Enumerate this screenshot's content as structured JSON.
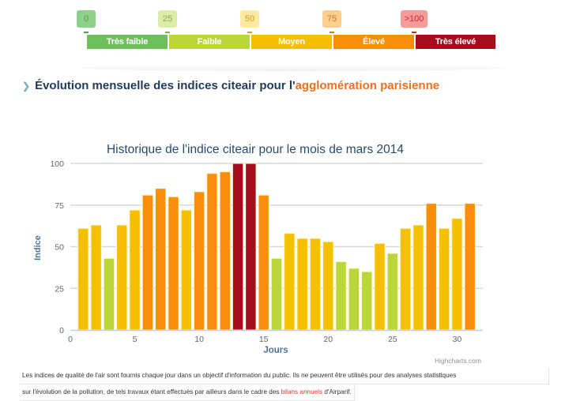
{
  "legend": {
    "thresholds": [
      {
        "label": "0",
        "bg": "#8fd18a",
        "fg": "#4f9a4a"
      },
      {
        "label": "25",
        "bg": "#dcecaa",
        "fg": "#8aab3a"
      },
      {
        "label": "50",
        "bg": "#fde9a0",
        "fg": "#d0a020"
      },
      {
        "label": "75",
        "bg": "#fccf90",
        "fg": "#c87820"
      },
      {
        "label": ">100",
        "bg": "#f99a9a",
        "fg": "#c03030"
      }
    ],
    "bands": [
      {
        "label": "Très faible",
        "color": "#6cbf5a"
      },
      {
        "label": "Faible",
        "color": "#bad63a"
      },
      {
        "label": "Moyen",
        "color": "#f5c000"
      },
      {
        "label": "Élevé",
        "color": "#f98e0a"
      },
      {
        "label": "Très élevé",
        "color": "#a50d1c"
      }
    ]
  },
  "section": {
    "title_prefix": "Évolution mensuelle des indices citeair pour l'",
    "title_highlight": "agglomération parisienne"
  },
  "chart_data": {
    "type": "bar",
    "title": "Historique de l'indice citeair pour le mois de mars 2014",
    "xlabel": "Jours",
    "ylabel": "Indice",
    "x": [
      1,
      2,
      3,
      4,
      5,
      6,
      7,
      8,
      9,
      10,
      11,
      12,
      13,
      14,
      15,
      16,
      17,
      18,
      19,
      20,
      21,
      22,
      23,
      24,
      25,
      26,
      27,
      28,
      29,
      30,
      31
    ],
    "values": [
      61,
      63,
      43,
      63,
      72,
      81,
      85,
      80,
      72,
      83,
      94,
      95,
      100,
      100,
      81,
      43,
      58,
      55,
      55,
      53,
      41,
      37,
      35,
      52,
      46,
      61,
      63,
      76,
      61,
      67,
      76
    ],
    "color_by_level": {
      "tres_faible": "#6cbf5a",
      "faible": "#bad63a",
      "moyen": "#f5c000",
      "eleve": "#f98e0a",
      "tres_eleve": "#a50d1c"
    },
    "level_thresholds": [
      25,
      50,
      75,
      100
    ],
    "xlim": [
      0,
      32
    ],
    "ylim": [
      0,
      100
    ],
    "xticks": [
      0,
      5,
      10,
      15,
      20,
      25,
      30
    ],
    "yticks": [
      0,
      25,
      50,
      75,
      100
    ],
    "grid": true,
    "credit": "Highcharts.com"
  },
  "footer": {
    "line1": "Les indices de qualité de l'air sont fournis chaque jour dans un objectif d'information du public. Ils ne peuvent être utilisés pour des analyses statistiques",
    "line2_prefix": "sur l'évolution de la pollution, de tels travaux étant effectués par ailleurs dans le cadre des ",
    "line2_link": "bilans annuels",
    "line2_suffix": " d'Airparif."
  }
}
